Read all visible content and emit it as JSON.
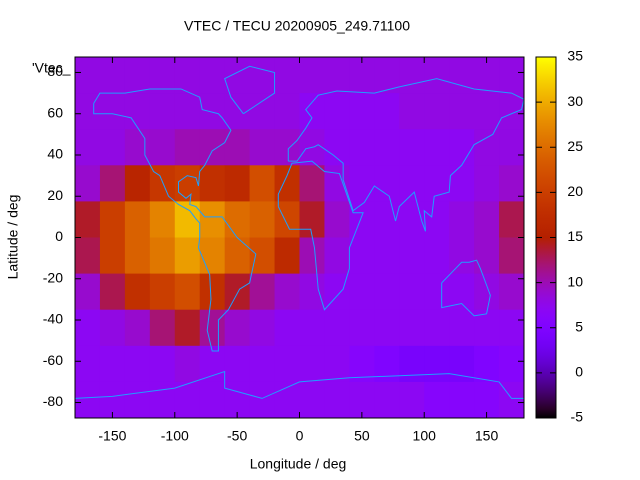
{
  "chart_data": {
    "type": "heatmap",
    "title": "VTEC / TECU 20200905_249.71100",
    "xlabel": "Longitude / deg",
    "ylabel": "Latitude / deg",
    "legend_text": "'Vtec_",
    "palette": "gnuplot",
    "x": [
      -170,
      -150,
      -130,
      -110,
      -90,
      -70,
      -50,
      -30,
      -10,
      10,
      30,
      50,
      70,
      90,
      110,
      130,
      150,
      170
    ],
    "y": [
      78.75,
      61.25,
      43.75,
      26.25,
      8.75,
      -8.75,
      -26.25,
      -43.75,
      -61.25,
      -78.75
    ],
    "z": [
      [
        8,
        8,
        8,
        8,
        8,
        8,
        8,
        8,
        8,
        8,
        8,
        8,
        8,
        8,
        8,
        8,
        8,
        8
      ],
      [
        8,
        8,
        8,
        8,
        8,
        8,
        8,
        8,
        8,
        7,
        7,
        7,
        7,
        8,
        8,
        8,
        8,
        8
      ],
      [
        8,
        8,
        9,
        9,
        10,
        10,
        10,
        9,
        9,
        8,
        7,
        7,
        7,
        7,
        7,
        7,
        8,
        8
      ],
      [
        9,
        12,
        16,
        19,
        20,
        18,
        17,
        22,
        18,
        12,
        8,
        7,
        7,
        7,
        7,
        7,
        8,
        9
      ],
      [
        14,
        20,
        24,
        27,
        31,
        28,
        25,
        24,
        21,
        14,
        9,
        7,
        7,
        7,
        7,
        8,
        9,
        13
      ],
      [
        13,
        20,
        24,
        26,
        29,
        27,
        24,
        22,
        17,
        10,
        8,
        7,
        7,
        7,
        7,
        8,
        9,
        12
      ],
      [
        9,
        13,
        18,
        20,
        22,
        18,
        14,
        11,
        9,
        8,
        7,
        7,
        7,
        7,
        7,
        7,
        8,
        9
      ],
      [
        7,
        8,
        9,
        12,
        14,
        11,
        9,
        8,
        7,
        7,
        7,
        7,
        7,
        7,
        7,
        7,
        7,
        7
      ],
      [
        7,
        7,
        7,
        7,
        8,
        7,
        7,
        7,
        7,
        7,
        7,
        6,
        5,
        4,
        4,
        4,
        5,
        6
      ],
      [
        7,
        7,
        7,
        7,
        7,
        7,
        7,
        7,
        7,
        7,
        7,
        7,
        7,
        7,
        6,
        6,
        6,
        7
      ]
    ],
    "xlim": [
      -180,
      180
    ],
    "ylim": [
      -87.5,
      87.5
    ],
    "zlim": [
      -5,
      35
    ],
    "xticks": [
      -150,
      -100,
      -50,
      0,
      50,
      100,
      150
    ],
    "yticks": [
      -80,
      -60,
      -40,
      -20,
      0,
      20,
      40,
      60,
      80
    ],
    "zticks": [
      -5,
      0,
      5,
      10,
      15,
      20,
      25,
      30,
      35
    ]
  }
}
